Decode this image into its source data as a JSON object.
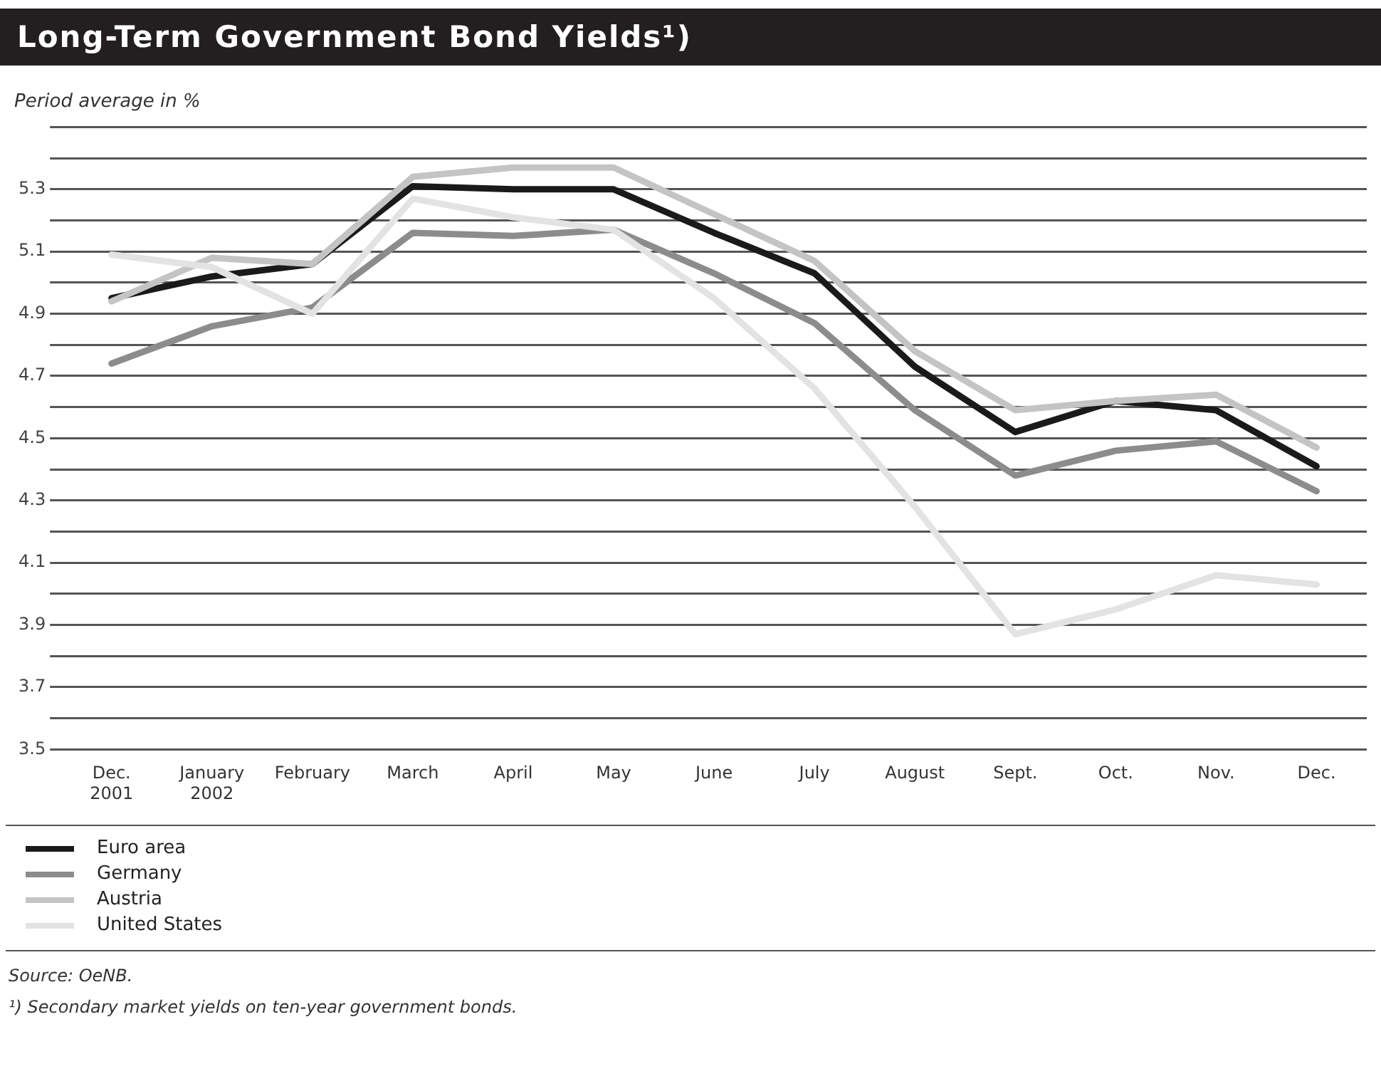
{
  "chart_data": {
    "type": "line",
    "title": "Long-Term Government Bond Yields¹)",
    "ylabel": "Period average in %",
    "categories": [
      "Dec.\n2001",
      "January\n2002",
      "February",
      "March",
      "April",
      "May",
      "June",
      "July",
      "August",
      "Sept.",
      "Oct.",
      "Nov.",
      "Dec."
    ],
    "series": [
      {
        "name": "Euro area",
        "color": "#1a1a1a",
        "values": [
          4.95,
          5.02,
          5.06,
          5.31,
          5.3,
          5.3,
          5.16,
          5.03,
          4.73,
          4.52,
          4.62,
          4.59,
          4.41
        ]
      },
      {
        "name": "Germany",
        "color": "#8c8c8c",
        "values": [
          4.74,
          4.86,
          4.92,
          5.16,
          5.15,
          5.17,
          5.03,
          4.87,
          4.59,
          4.38,
          4.46,
          4.49,
          4.33
        ]
      },
      {
        "name": "Austria",
        "color": "#c4c4c4",
        "values": [
          4.94,
          5.08,
          5.06,
          5.34,
          5.37,
          5.37,
          5.22,
          5.07,
          4.78,
          4.59,
          4.62,
          4.64,
          4.47
        ]
      },
      {
        "name": "United States",
        "color": "#e3e3e3",
        "values": [
          5.09,
          5.05,
          4.9,
          5.27,
          5.21,
          5.17,
          4.95,
          4.66,
          4.28,
          3.87,
          3.95,
          4.06,
          4.03
        ]
      }
    ],
    "ylim": [
      3.5,
      5.5
    ],
    "yticks": [
      3.5,
      {
        "value": 3.6,
        "label": null
      },
      3.7,
      {
        "value": 3.8,
        "label": null
      },
      3.9,
      {
        "value": 4.0,
        "label": null
      },
      4.1,
      {
        "value": 4.2,
        "label": null
      },
      4.3,
      {
        "value": 4.4,
        "label": null
      },
      4.5,
      {
        "value": 4.6,
        "label": null
      },
      4.7,
      {
        "value": 4.8,
        "label": null
      },
      4.9,
      {
        "value": 5.0,
        "label": null
      },
      5.1,
      {
        "value": 5.2,
        "label": null
      },
      5.3,
      {
        "value": 5.4,
        "label": null
      },
      {
        "value": 5.5,
        "label": null
      }
    ],
    "grid": "y",
    "legend": "bottom",
    "marker": "none",
    "line_style": "solid",
    "annotations": [
      "Source: OeNB.",
      "¹) Secondary market yields on ten-year government bonds."
    ]
  }
}
